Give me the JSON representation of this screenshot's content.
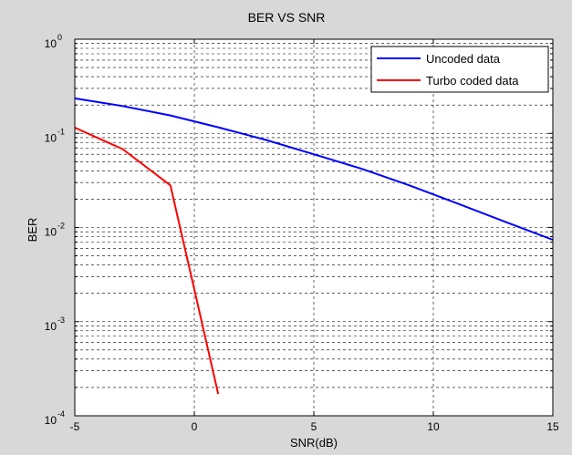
{
  "chart_data": {
    "type": "line",
    "title": "BER VS SNR",
    "xlabel": "SNR(dB)",
    "ylabel": "BER",
    "xlim": [
      -5,
      15
    ],
    "ylim": [
      0.0001,
      1
    ],
    "yscale": "log",
    "grid": "major-and-minor, dashed",
    "legend_position": "top-right",
    "x_ticks": [
      {
        "value": -5,
        "label": "-5"
      },
      {
        "value": 0,
        "label": "0"
      },
      {
        "value": 5,
        "label": "5"
      },
      {
        "value": 10,
        "label": "10"
      },
      {
        "value": 15,
        "label": "15"
      }
    ],
    "y_ticks": [
      {
        "value": 0.0001,
        "base": "10",
        "exponent": "-4"
      },
      {
        "value": 0.001,
        "base": "10",
        "exponent": "-3"
      },
      {
        "value": 0.01,
        "base": "10",
        "exponent": "-2"
      },
      {
        "value": 0.1,
        "base": "10",
        "exponent": "-1"
      },
      {
        "value": 1,
        "base": "10",
        "exponent": "0"
      }
    ],
    "series": [
      {
        "name": "Uncoded data",
        "color": "#0000ff",
        "x": [
          -5,
          -3,
          -1,
          1,
          3,
          5,
          7,
          9,
          11,
          13,
          15
        ],
        "y": [
          0.235,
          0.195,
          0.155,
          0.116,
          0.085,
          0.06,
          0.042,
          0.028,
          0.018,
          0.0115,
          0.0074
        ]
      },
      {
        "name": "Turbo coded data",
        "color": "#ff0000",
        "x": [
          -5,
          -3,
          -1,
          0,
          1
        ],
        "y": [
          0.115,
          0.068,
          0.028,
          0.0022,
          0.00017
        ]
      }
    ]
  }
}
